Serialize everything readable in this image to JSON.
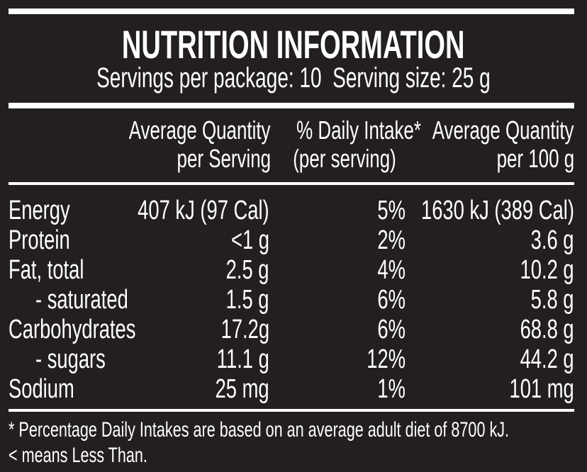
{
  "title": "NUTRITION INFORMATION",
  "servings_line": "Servings per package: 10  Serving size: 25 g",
  "columns": {
    "col1_line1": "Average Quantity",
    "col1_line2": "per Serving",
    "col2_line1": "% Daily Intake*",
    "col2_line2": "(per serving)",
    "col3_line1": "Average Quantity",
    "col3_line2": "per 100 g"
  },
  "rows": [
    {
      "name": "Energy",
      "per_serving": "407 kJ (97 Cal)",
      "daily_intake": "5%",
      "per_100g": "1630 kJ (389 Cal)"
    },
    {
      "name": "Protein",
      "per_serving": "<1 g",
      "daily_intake": "2%",
      "per_100g": "3.6 g"
    },
    {
      "name": "Fat, total",
      "per_serving": "2.5 g",
      "daily_intake": "4%",
      "per_100g": "10.2 g"
    },
    {
      "name": "- saturated",
      "per_serving": "1.5 g",
      "daily_intake": "6%",
      "per_100g": "5.8 g"
    },
    {
      "name": "Carbohydrates",
      "per_serving": "17.2g",
      "daily_intake": "6%",
      "per_100g": "68.8 g"
    },
    {
      "name": "- sugars",
      "per_serving": "11.1 g",
      "daily_intake": "12%",
      "per_100g": "44.2 g"
    },
    {
      "name": "Sodium",
      "per_serving": "25 mg",
      "daily_intake": "1%",
      "per_100g": "101 mg"
    }
  ],
  "footnotes": {
    "daily_intake_note": "* Percentage Daily Intakes are based on an average adult diet of 8700 kJ.",
    "less_than_note": "< means Less Than."
  },
  "colors": {
    "background": "#231f20",
    "text": "#ffffff",
    "rules": "#ffffff"
  }
}
